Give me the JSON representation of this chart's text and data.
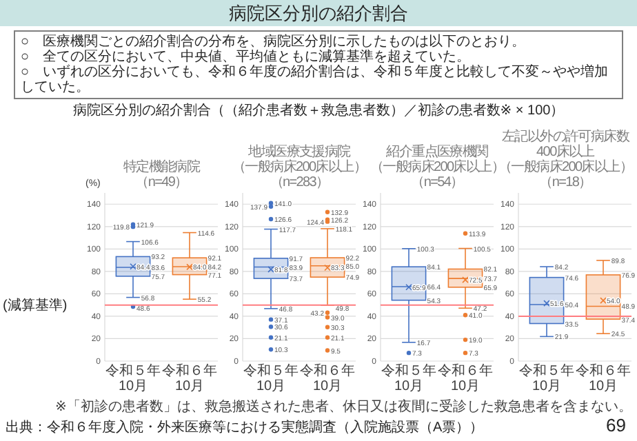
{
  "chart_data": [
    {
      "type": "box",
      "title": "特定機能病院",
      "subtitle": "（n=49）",
      "ylabel": "(%)",
      "categories": [
        "令和５年10月",
        "令和６年10月"
      ],
      "colors": [
        "#4472c4",
        "#ed7d31"
      ],
      "boxes": [
        {
          "low": 56.8,
          "q1": 75.7,
          "median": 83.6,
          "q3": 93.2,
          "high": 106.6,
          "mean": 84.4,
          "outliers": [
            121.9,
            119.8,
            48.6
          ]
        },
        {
          "low": 55.2,
          "q1": 77.1,
          "median": 84.2,
          "q3": 92.1,
          "high": 114.6,
          "mean": 84.0
        }
      ],
      "ylim": [
        0,
        150
      ],
      "yticks": [
        0,
        20,
        40,
        60,
        80,
        100,
        120,
        140
      ],
      "grid": "y",
      "ref_lines": [
        {
          "axis": "y",
          "value": 50,
          "label": "(減算基準)",
          "color": "#ff7c80"
        }
      ],
      "annotations": [
        "121.9",
        "119.8",
        "48.6",
        "病院区分別の紹介割合",
        "○　医療機関ごとの紹介割合の分布を、病院区分別に示したものは以下のとおり。",
        "○　全ての区分において、中央値、平均値ともに減算基準を超えていた。",
        "○　いずれの区分においても、令和６年度の紹介割合は、令和５年度と比較して不変～やや増加していた。",
        "病院区分別の紹介割合（（紹介患者数＋救急患者数）／初診の患者数※ × 100）",
        "※「初診の患者数」は、救急搬送された患者、休日又は夜間に受診した救急患者を含まない。",
        "出典：令和６年度入院・外来医療等における実態調査（入院施設票（A票））",
        "69",
        {
          "text": "106.6",
          "x": "令和５年10月",
          "y": 106.6
        },
        {
          "text": "56.8",
          "x": "令和５年10月",
          "y": 56.8
        },
        {
          "text": "93.2",
          "x": "令和５年10月",
          "y": 93.2
        },
        {
          "text": "83.6",
          "x": "令和５年10月",
          "y": 83.6
        },
        {
          "text": "75.7",
          "x": "令和５年10月",
          "y": 75.7
        },
        {
          "text": "84.4",
          "x": "令和５年10月",
          "y": 84.4
        },
        {
          "text": "114.6",
          "x": "令和６年10月",
          "y": 114.6
        },
        {
          "text": "55.2",
          "x": "令和６年10月",
          "y": 55.2
        },
        {
          "text": "92.1",
          "x": "令和６年10月",
          "y": 92.1
        },
        {
          "text": "84.2",
          "x": "令和６年10月",
          "y": 84.2
        },
        {
          "text": "77.1",
          "x": "令和６年10月",
          "y": 77.1
        },
        {
          "text": "84.0",
          "x": "令和６年10月",
          "y": 84.0
        }
      ]
    },
    {
      "type": "box",
      "title": "地域医療支援病院",
      "subtitle": "（一般病床200床以上）（n=283）",
      "categories": [
        "令和５年10月",
        "令和６年10月"
      ],
      "colors": [
        "#4472c4",
        "#ed7d31"
      ],
      "boxes": [
        {
          "low": 46.8,
          "q1": 73.7,
          "median": 83.9,
          "q3": 91.7,
          "high": 117.7,
          "mean": 81.8,
          "outliers": [
            141.0,
            137.9,
            126.6,
            37.1,
            30.6,
            21.1,
            10.3
          ]
        },
        {
          "low": 49.8,
          "q1": 74.9,
          "median": 85.0,
          "q3": 92.2,
          "high": 118.1,
          "mean": 83.3,
          "outliers": [
            132.9,
            126.2,
            124.4,
            43.2,
            39.0,
            30.3,
            21.1,
            9.5
          ]
        }
      ],
      "ylim": [
        0,
        150
      ],
      "yticks": [
        0,
        20,
        40,
        60,
        80,
        100,
        120,
        140
      ],
      "grid": "y",
      "ref_lines": [
        {
          "axis": "y",
          "value": 50,
          "color": "#ff7c80"
        }
      ],
      "annotations": [
        "141.0",
        "137.9",
        "126.6",
        "37.1",
        "30.6",
        "21.1",
        "10.3",
        "132.9",
        "126.2",
        "124.4",
        "43.2",
        "39.0",
        "30.3",
        "21.1",
        "9.5",
        {
          "text": "117.7",
          "x": "令和５年10月",
          "y": 117.7
        },
        {
          "text": "46.8",
          "x": "令和５年10月",
          "y": 46.8
        },
        {
          "text": "91.7",
          "x": "令和５年10月",
          "y": 91.7
        },
        {
          "text": "83.9",
          "x": "令和５年10月",
          "y": 83.9
        },
        {
          "text": "73.7",
          "x": "令和５年10月",
          "y": 73.7
        },
        {
          "text": "81.8",
          "x": "令和５年10月",
          "y": 81.8
        },
        {
          "text": "118.1",
          "x": "令和６年10月",
          "y": 118.1
        },
        {
          "text": "49.8",
          "x": "令和６年10月",
          "y": 49.8
        },
        {
          "text": "92.2",
          "x": "令和６年10月",
          "y": 92.2
        },
        {
          "text": "85.0",
          "x": "令和６年10月",
          "y": 85.0
        },
        {
          "text": "74.9",
          "x": "令和６年10月",
          "y": 74.9
        },
        {
          "text": "83.3",
          "x": "令和６年10月",
          "y": 83.3
        }
      ]
    },
    {
      "type": "box",
      "title": "紹介重点医療機関",
      "subtitle": "（一般病床200床以上）（n=54）",
      "categories": [
        "令和５年10月",
        "令和６年10月"
      ],
      "colors": [
        "#4472c4",
        "#ed7d31"
      ],
      "boxes": [
        {
          "low": 16.7,
          "q1": 54.3,
          "median": 66.4,
          "q3": 84.1,
          "high": 100.3,
          "mean": 65.9,
          "outliers": [
            7.3
          ]
        },
        {
          "low": 47.2,
          "q1": 65.9,
          "median": 73.7,
          "q3": 82.1,
          "high": 100.5,
          "mean": 72.5,
          "outliers": [
            113.9,
            41.0,
            19.0,
            7.3
          ]
        }
      ],
      "ylim": [
        0,
        150
      ],
      "yticks": [
        0,
        20,
        40,
        60,
        80,
        100,
        120,
        140
      ],
      "grid": "y",
      "ref_lines": [
        {
          "axis": "y",
          "value": 50,
          "color": "#ff7c80"
        }
      ],
      "annotations": [
        "7.3",
        "113.9",
        "41.0",
        "19.0",
        "7.3",
        {
          "text": "100.3",
          "x": "令和５年10月",
          "y": 100.3
        },
        {
          "text": "16.7",
          "x": "令和５年10月",
          "y": 16.7
        },
        {
          "text": "84.1",
          "x": "令和５年10月",
          "y": 84.1
        },
        {
          "text": "66.4",
          "x": "令和５年10月",
          "y": 66.4
        },
        {
          "text": "54.3",
          "x": "令和５年10月",
          "y": 54.3
        },
        {
          "text": "65.9",
          "x": "令和５年10月",
          "y": 65.9
        },
        {
          "text": "100.5",
          "x": "令和６年10月",
          "y": 100.5
        },
        {
          "text": "47.2",
          "x": "令和６年10月",
          "y": 47.2
        },
        {
          "text": "82.1",
          "x": "令和６年10月",
          "y": 82.1
        },
        {
          "text": "73.7",
          "x": "令和６年10月",
          "y": 73.7
        },
        {
          "text": "65.9",
          "x": "令和６年10月",
          "y": 65.9
        },
        {
          "text": "72.5",
          "x": "令和６年10月",
          "y": 72.5
        }
      ]
    },
    {
      "type": "box",
      "title": "左記以外の許可病床数400床以上",
      "subtitle": "（一般病床200床以上）（n=18）",
      "categories": [
        "令和５年10月",
        "令和６年10月"
      ],
      "colors": [
        "#4472c4",
        "#ed7d31"
      ],
      "boxes": [
        {
          "low": 21.9,
          "q1": 33.5,
          "median": 50.4,
          "q3": 74.6,
          "high": 84.2,
          "mean": 51.6
        },
        {
          "low": 24.5,
          "q1": 37.4,
          "median": 48.9,
          "q3": 76.9,
          "high": 89.8,
          "mean": 54.0
        }
      ],
      "ylim": [
        0,
        150
      ],
      "yticks": [
        0,
        20,
        40,
        60,
        80,
        100,
        120,
        140
      ],
      "grid": "y",
      "ref_lines": [
        {
          "axis": "y",
          "value": 40,
          "color": "#ff7c80"
        }
      ],
      "annotations": [
        {
          "text": "84.2",
          "x": "令和５年10月",
          "y": 84.2
        },
        {
          "text": "21.9",
          "x": "令和５年10月",
          "y": 21.9
        },
        {
          "text": "74.6",
          "x": "令和５年10月",
          "y": 74.6
        },
        {
          "text": "50.4",
          "x": "令和５年10月",
          "y": 50.4
        },
        {
          "text": "33.5",
          "x": "令和５年10月",
          "y": 33.5
        },
        {
          "text": "51.6",
          "x": "令和５年10月",
          "y": 51.6
        },
        {
          "text": "89.8",
          "x": "令和６年10月",
          "y": 89.8
        },
        {
          "text": "24.5",
          "x": "令和６年10月",
          "y": 24.5
        },
        {
          "text": "76.9",
          "x": "令和６年10月",
          "y": 76.9
        },
        {
          "text": "48.9",
          "x": "令和６年10月",
          "y": 48.9
        },
        {
          "text": "37.4",
          "x": "令和６年10月",
          "y": 37.4
        },
        {
          "text": "54.0",
          "x": "令和６年10月",
          "y": 54.0
        }
      ]
    }
  ]
}
